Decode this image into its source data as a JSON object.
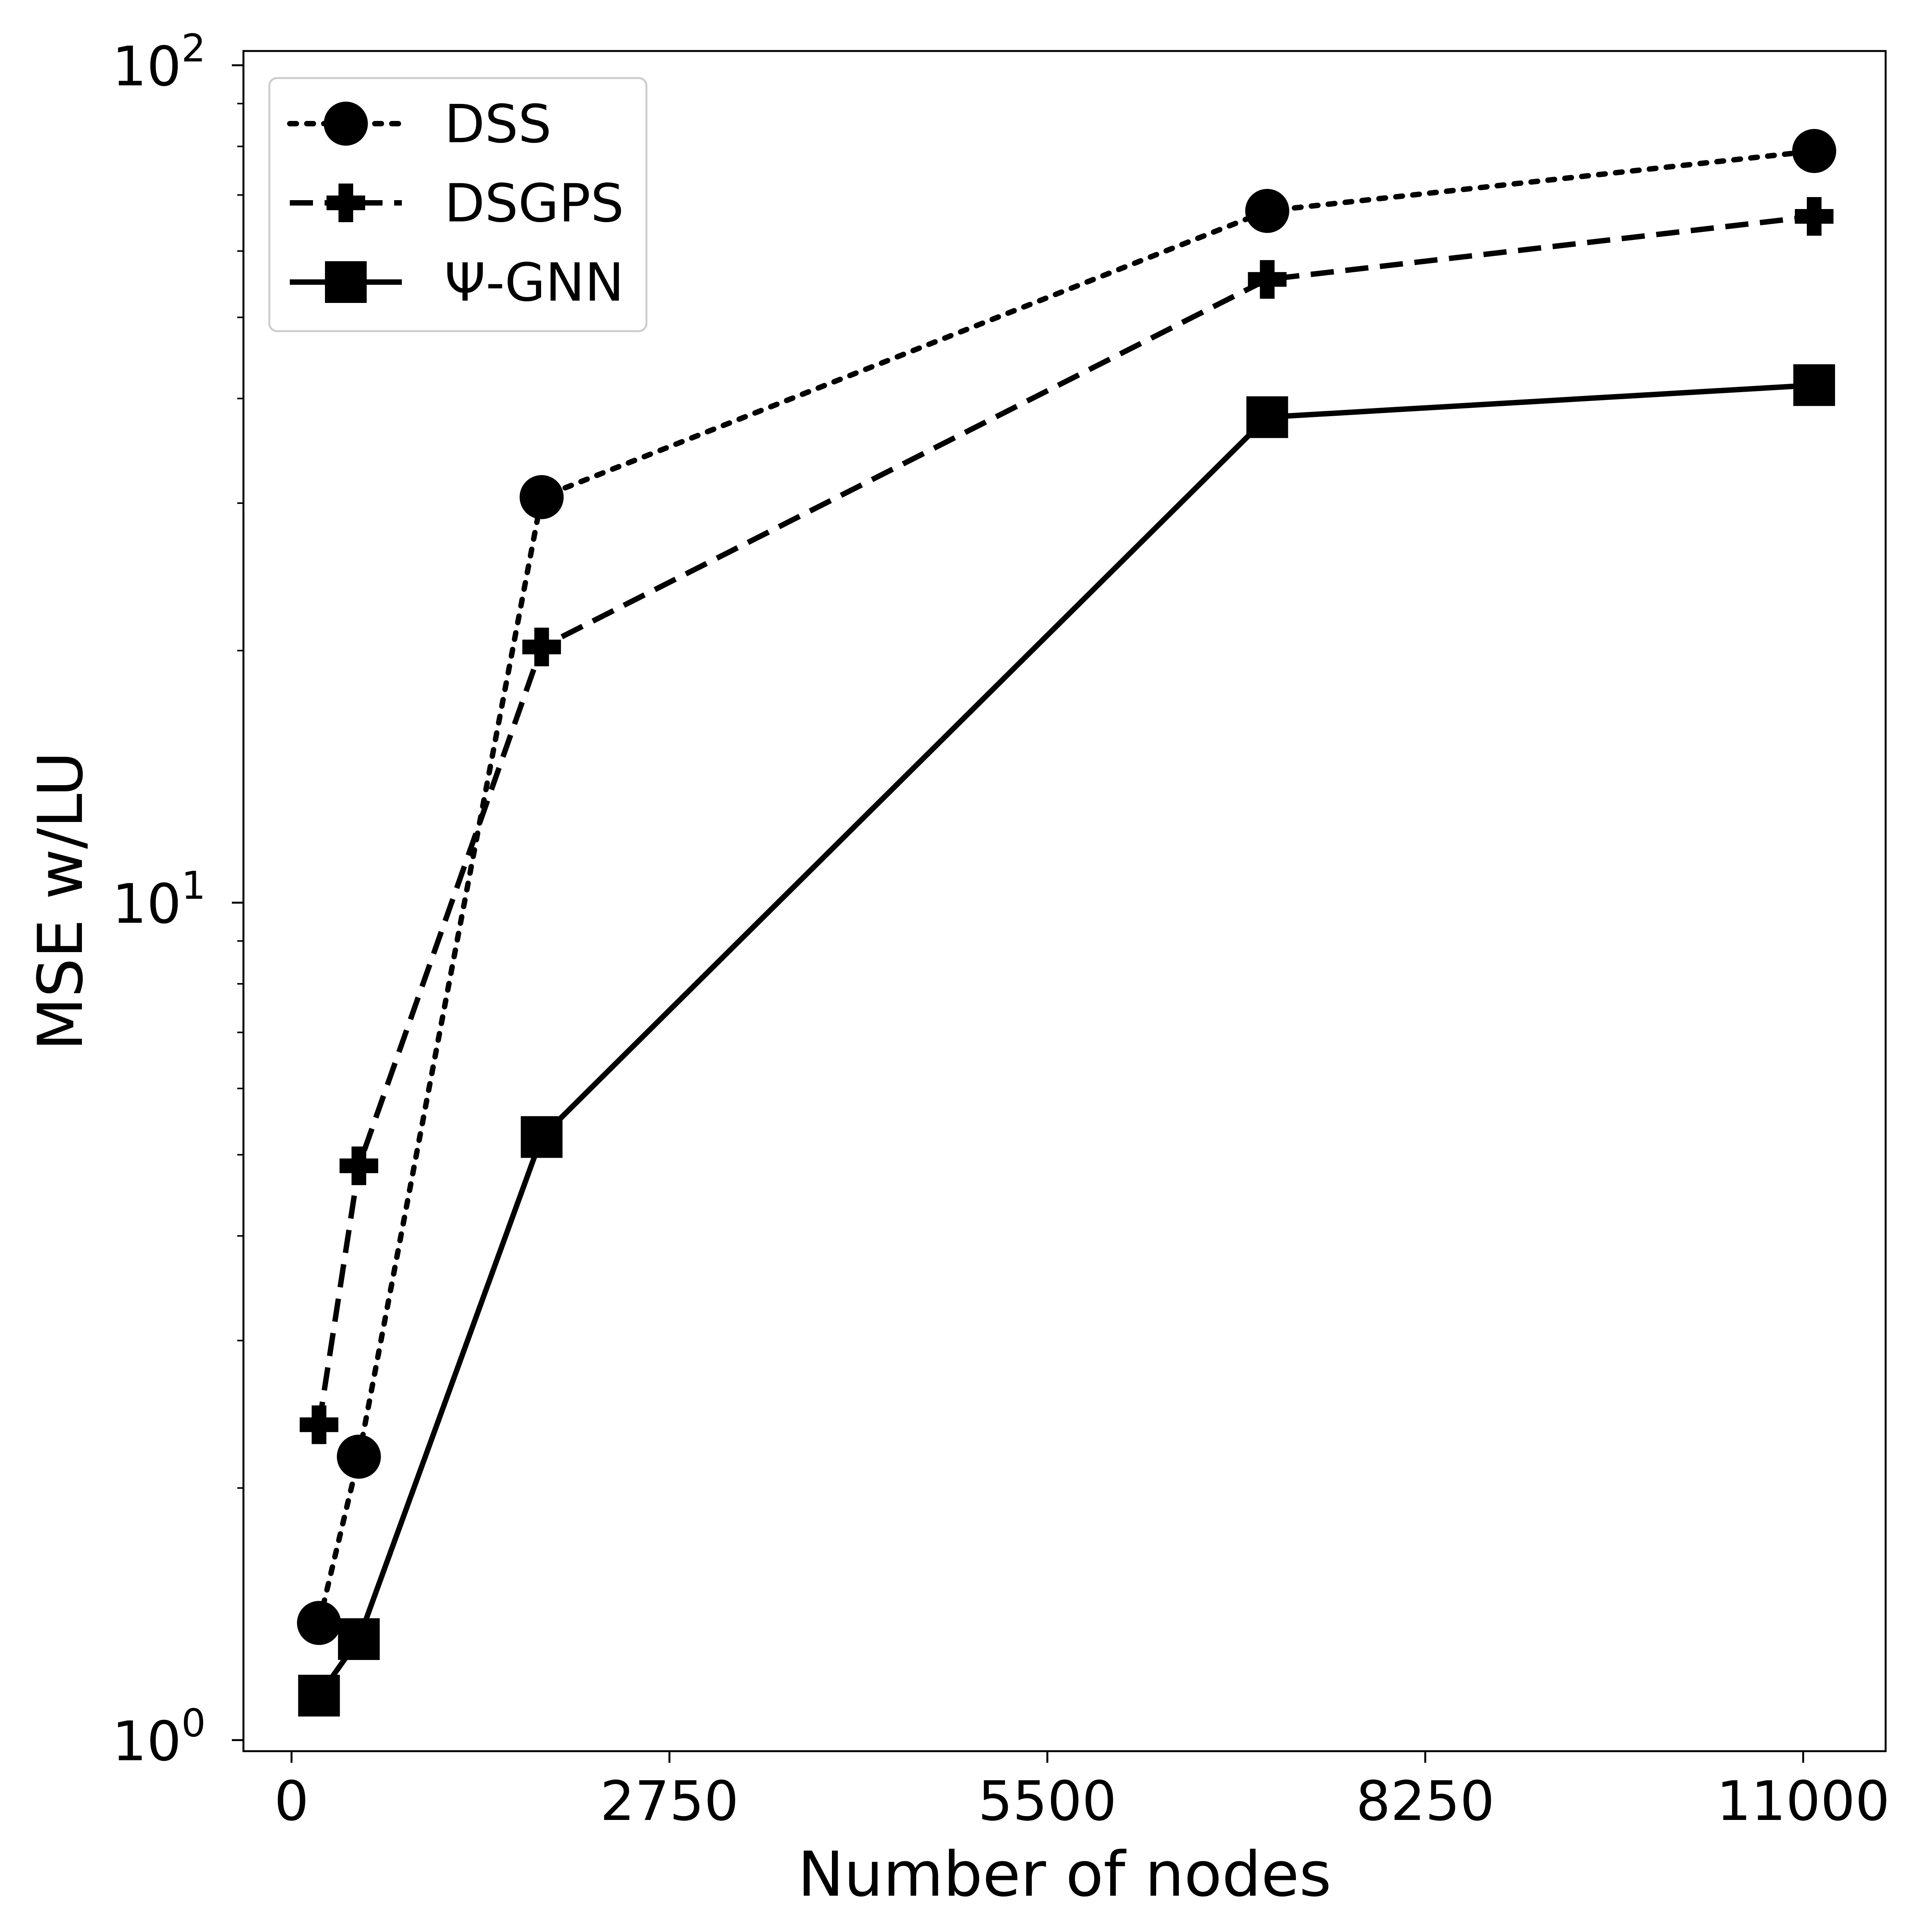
{
  "chart_data": {
    "type": "line",
    "xlabel": "Number of nodes",
    "ylabel": "MSE w/LU",
    "xlim": [
      -350,
      11600
    ],
    "ylim": [
      0.97,
      104
    ],
    "yscale": "log",
    "xticks": [
      "0",
      "2750",
      "5500",
      "8250",
      "11000"
    ],
    "yticks": [
      {
        "base": "10",
        "exp": "0"
      },
      {
        "base": "10",
        "exp": "1"
      },
      {
        "base": "10",
        "exp": "2"
      }
    ],
    "legend_position": "top-left",
    "grid": false,
    "series": [
      {
        "name": "DSS",
        "marker": "circle",
        "linestyle": "dotted",
        "x": [
          200,
          490,
          1820,
          7100,
          11080
        ],
        "y": [
          1.38,
          2.18,
          30.5,
          67.0,
          79.0
        ]
      },
      {
        "name": "DSGPS",
        "marker": "plus",
        "linestyle": "dashed",
        "x": [
          200,
          490,
          1820,
          7100,
          11080
        ],
        "y": [
          2.38,
          4.85,
          20.2,
          55.5,
          66.0
        ]
      },
      {
        "name": "Ψ-GNN",
        "marker": "square",
        "linestyle": "solid",
        "x": [
          200,
          490,
          1820,
          7100,
          11080
        ],
        "y": [
          1.13,
          1.32,
          5.25,
          38.0,
          41.5
        ]
      }
    ]
  }
}
